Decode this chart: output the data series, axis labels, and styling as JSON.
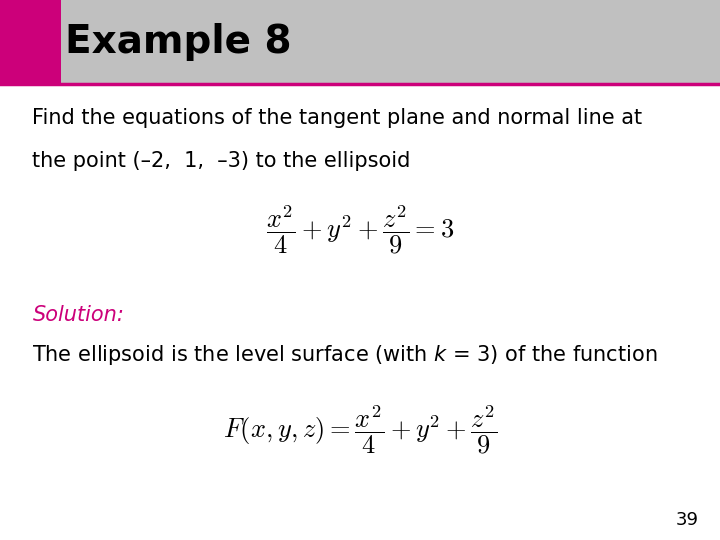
{
  "title": "Example 8",
  "title_fontsize": 28,
  "title_bg_color": "#c0c0c0",
  "title_accent_color": "#cc007a",
  "body_bg_color": "#ffffff",
  "text_color": "#000000",
  "solution_color": "#cc007a",
  "paragraph1_line1": "Find the equations of the tangent plane and normal line at",
  "paragraph1_line2": "the point (–2,  1,  –3) to the ellipsoid",
  "equation1": "$\\dfrac{x^2}{4} + y^2 + \\dfrac{z^2}{9} = 3$",
  "solution_label": "Solution:",
  "paragraph2": "The ellipsoid is the level surface (with $k$ = 3) of the function",
  "equation2": "$F(x, y, z) = \\dfrac{x^2}{4} + y^2 + \\dfrac{z^2}{9}$",
  "page_number": "39",
  "text_fontsize": 15,
  "eq_fontsize": 16
}
